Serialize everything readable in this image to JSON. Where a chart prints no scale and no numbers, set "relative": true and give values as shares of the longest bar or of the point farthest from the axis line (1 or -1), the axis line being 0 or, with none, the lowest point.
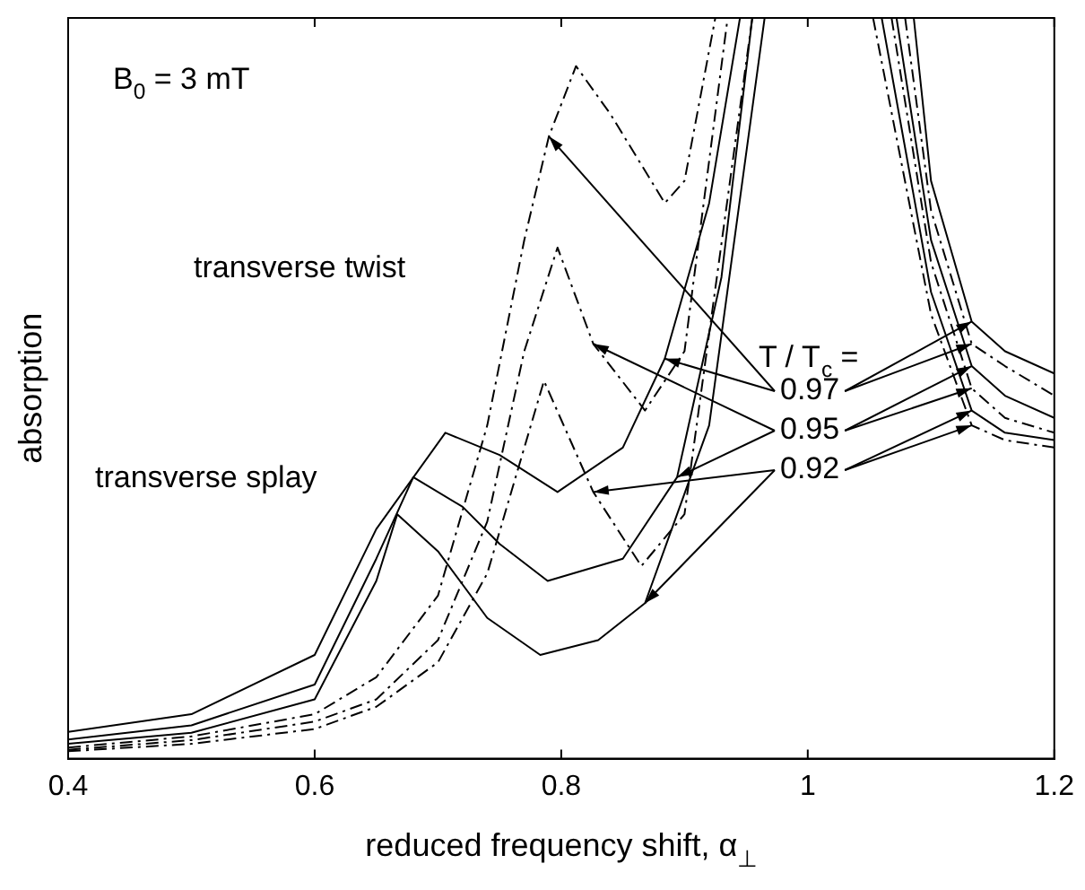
{
  "chart_data": {
    "type": "line",
    "relative": true,
    "xlabel": "reduced frequency shift, α$_{⊥}$",
    "ylabel": "absorption",
    "xlim": [
      0.4,
      1.2
    ],
    "xticks": [
      0.4,
      0.6,
      0.8,
      1,
      1.2
    ],
    "grid": false,
    "legend": false,
    "marker": "none",
    "annotations": [
      "B$_{0}$ = 3 mT",
      "transverse twist",
      "transverse splay",
      "T / T$_{c}$ =",
      "0.97",
      "0.95",
      "0.92"
    ],
    "series": [
      {
        "color": "#000000",
        "line_style": "solid",
        "x": [
          0.4,
          0.5,
          0.6,
          0.65,
          0.706,
          0.75,
          0.797,
          0.85,
          0.884,
          0.92,
          0.945,
          1.0,
          1.086,
          1.1,
          1.133,
          1.16,
          1.2
        ],
        "values": [
          0.036,
          0.06,
          0.14,
          0.31,
          0.44,
          0.41,
          0.36,
          0.42,
          0.54,
          0.75,
          1,
          null,
          1,
          0.78,
          0.59,
          0.55,
          0.52
        ]
      },
      {
        "color": "#000000",
        "line_style": "solid",
        "x": [
          0.4,
          0.5,
          0.6,
          0.65,
          0.68,
          0.72,
          0.75,
          0.789,
          0.85,
          0.894,
          0.93,
          0.955,
          1.0,
          1.072,
          1.1,
          1.133,
          1.16,
          1.2
        ],
        "values": [
          0.026,
          0.045,
          0.1,
          0.27,
          0.38,
          0.34,
          0.29,
          0.24,
          0.27,
          0.38,
          0.65,
          1,
          null,
          1,
          0.7,
          0.53,
          0.49,
          0.46
        ]
      },
      {
        "color": "#000000",
        "line_style": "solid",
        "x": [
          0.4,
          0.5,
          0.6,
          0.65,
          0.667,
          0.7,
          0.74,
          0.783,
          0.83,
          0.868,
          0.92,
          0.965,
          1.0,
          1.06,
          1.1,
          1.133,
          1.16,
          1.2
        ],
        "values": [
          0.02,
          0.035,
          0.08,
          0.24,
          0.33,
          0.28,
          0.19,
          0.14,
          0.16,
          0.21,
          0.45,
          1,
          null,
          1,
          0.63,
          0.47,
          0.44,
          0.43
        ]
      },
      {
        "color": "#000000",
        "line_style": "dashed",
        "x": [
          0.4,
          0.5,
          0.6,
          0.65,
          0.7,
          0.74,
          0.77,
          0.79,
          0.812,
          0.84,
          0.884,
          0.9,
          0.925,
          1.0,
          1.079,
          1.1,
          1.133,
          1.16,
          1.2
        ],
        "values": [
          0.015,
          0.03,
          0.06,
          0.11,
          0.22,
          0.45,
          0.7,
          0.84,
          0.935,
          0.87,
          0.75,
          0.78,
          1,
          null,
          1,
          0.74,
          0.56,
          0.53,
          0.49
        ]
      },
      {
        "color": "#000000",
        "line_style": "dashed",
        "x": [
          0.4,
          0.5,
          0.6,
          0.65,
          0.7,
          0.74,
          0.77,
          0.797,
          0.826,
          0.868,
          0.9,
          0.935,
          1.0,
          1.068,
          1.1,
          1.133,
          1.16,
          1.2
        ],
        "values": [
          0.012,
          0.025,
          0.05,
          0.08,
          0.16,
          0.32,
          0.55,
          0.69,
          0.56,
          0.47,
          0.55,
          1,
          null,
          1,
          0.67,
          0.5,
          0.46,
          0.44
        ]
      },
      {
        "color": "#000000",
        "line_style": "dashed",
        "x": [
          0.4,
          0.5,
          0.6,
          0.65,
          0.7,
          0.74,
          0.786,
          0.826,
          0.865,
          0.9,
          0.955,
          1.0,
          1.053,
          1.1,
          1.133,
          1.16,
          1.2
        ],
        "values": [
          0.01,
          0.02,
          0.04,
          0.07,
          0.13,
          0.25,
          0.51,
          0.36,
          0.26,
          0.33,
          1,
          null,
          1,
          0.6,
          0.45,
          0.43,
          0.42
        ]
      }
    ]
  }
}
